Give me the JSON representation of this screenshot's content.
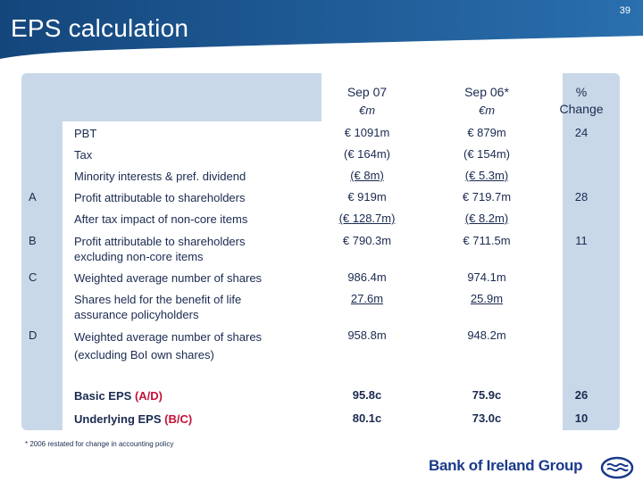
{
  "header": {
    "title": "EPS calculation",
    "page_number": "39"
  },
  "columns": {
    "c1": {
      "title": "Sep 07",
      "unit": "€m"
    },
    "c2": {
      "title": "Sep 06*",
      "unit": "€m"
    },
    "c3": {
      "title_line1": "%",
      "title_line2": "Change"
    }
  },
  "rows": [
    {
      "letter": "",
      "label": "PBT",
      "v1": "€ 1091m",
      "v2": "€ 879m",
      "v3": "24"
    },
    {
      "letter": "",
      "label": "Tax",
      "v1": "(€ 164m)",
      "v2": "(€ 154m)",
      "v3": ""
    },
    {
      "letter": "",
      "label": "Minority interests & pref. dividend",
      "v1": "(€ 8m)",
      "v2": "(€ 5.3m)",
      "v3": ""
    },
    {
      "letter": "A",
      "label": "Profit attributable to shareholders",
      "v1": "€ 919m",
      "v2": "€ 719.7m",
      "v3": "28"
    },
    {
      "letter": "",
      "label": "After tax impact of non-core items",
      "v1": "(€ 128.7m)",
      "v2": "(€ 8.2m)",
      "v3": ""
    },
    {
      "letter": "B",
      "label_line1": "Profit attributable to shareholders",
      "label_line2": "excluding non-core items",
      "v1": "€ 790.3m",
      "v2": "€ 711.5m",
      "v3": "11"
    },
    {
      "letter": "C",
      "label": "Weighted average number of shares",
      "v1": "986.4m",
      "v2": "974.1m",
      "v3": ""
    },
    {
      "letter": "",
      "label_line1": "Shares held for the benefit of life",
      "label_line2": "assurance policyholders",
      "v1": "27.6m",
      "v2": "25.9m",
      "v3": ""
    },
    {
      "letter": "D",
      "label_line1": "Weighted average number of shares",
      "label_line2": "(excluding BoI own shares)",
      "v1": "958.8m",
      "v2": "948.2m",
      "v3": ""
    },
    {
      "letter": "",
      "label": "Basic EPS",
      "suffix": "(A/D)",
      "v1": "95.8c",
      "v2": "75.9c",
      "v3": "26"
    },
    {
      "letter": "",
      "label": "Underlying EPS",
      "suffix": "(B/C)",
      "v1": "80.1c",
      "v2": "73.0c",
      "v3": "10"
    }
  ],
  "footnote": "* 2006 restated for change in accounting policy",
  "logo": {
    "text": "Bank of Ireland Group",
    "emblem": "boi-emblem-icon"
  },
  "colors": {
    "header_blue": "#1b5a96",
    "panel_blue": "#c9d8e8",
    "text_navy": "#1a2a50",
    "accent_red": "#c4123a"
  }
}
